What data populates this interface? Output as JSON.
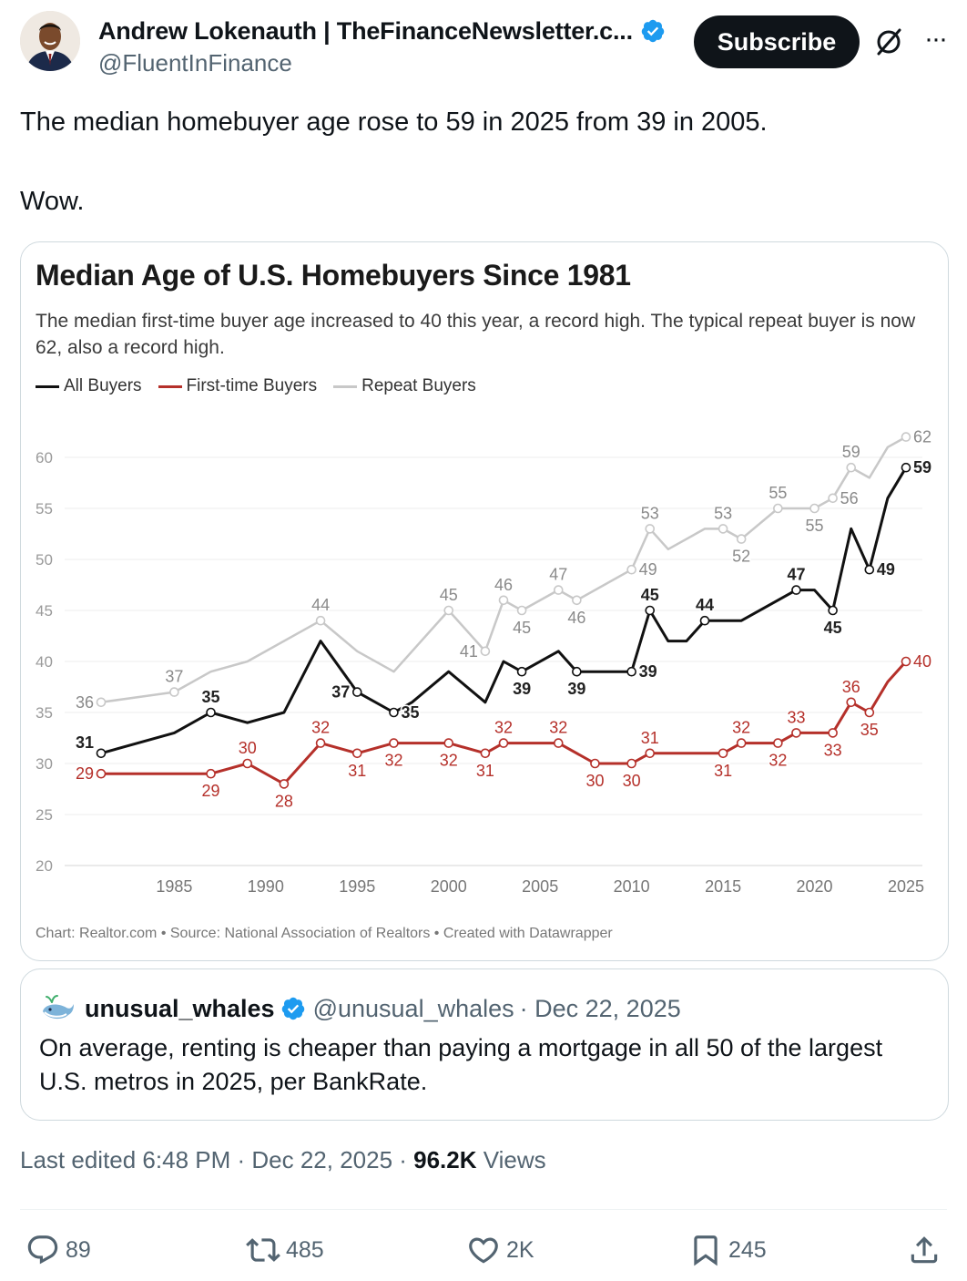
{
  "author": {
    "name": "Andrew Lokenauth | TheFinanceNewsletter.c...",
    "handle": "@FluentInFinance",
    "verified_color": "#1d9bf0"
  },
  "header": {
    "subscribe_label": "Subscribe",
    "grok_icon": "slashed-circle-icon",
    "more_label": "···"
  },
  "tweet": {
    "line1": "The median homebuyer age rose to 59 in 2025 from 39 in 2005.",
    "line2": "Wow."
  },
  "chart_data": {
    "type": "line",
    "title": "Median Age of U.S. Homebuyers Since 1981",
    "subtitle": "The median first-time buyer age increased to 40 this year, a record high. The typical repeat buyer is now 62, also a record high.",
    "source": "Chart: Realtor.com • Source: National Association of Realtors • Created with Datawrapper",
    "xlabel": "",
    "ylabel": "",
    "xlim": [
      1981,
      2025
    ],
    "ylim": [
      20,
      60
    ],
    "y_ticks": [
      20,
      25,
      30,
      35,
      40,
      45,
      50,
      55,
      60
    ],
    "x_ticks": [
      1985,
      1990,
      1995,
      2000,
      2005,
      2010,
      2015,
      2020,
      2025
    ],
    "grid": true,
    "legend": "top-left",
    "series": [
      {
        "name": "Repeat Buyers",
        "color": "#c8c8c8",
        "label_color": "#8a8a8a",
        "points": [
          [
            1981,
            36
          ],
          [
            1985,
            37
          ],
          [
            1987,
            39
          ],
          [
            1989,
            40
          ],
          [
            1993,
            44
          ],
          [
            1995,
            41
          ],
          [
            1997,
            39
          ],
          [
            2000,
            45
          ],
          [
            2002,
            41
          ],
          [
            2003,
            46
          ],
          [
            2004,
            45
          ],
          [
            2006,
            47
          ],
          [
            2007,
            46
          ],
          [
            2010,
            49
          ],
          [
            2011,
            53
          ],
          [
            2012,
            51
          ],
          [
            2014,
            53
          ],
          [
            2015,
            53
          ],
          [
            2016,
            52
          ],
          [
            2018,
            55
          ],
          [
            2019,
            55
          ],
          [
            2020,
            55
          ],
          [
            2021,
            56
          ],
          [
            2022,
            59
          ],
          [
            2023,
            58
          ],
          [
            2024,
            61
          ],
          [
            2025,
            62
          ]
        ],
        "labels": [
          {
            "x": 1981,
            "y": 36,
            "text": "36",
            "pos": "left"
          },
          {
            "x": 1985,
            "y": 37,
            "text": "37",
            "pos": "above"
          },
          {
            "x": 1993,
            "y": 44,
            "text": "44",
            "pos": "above"
          },
          {
            "x": 2000,
            "y": 45,
            "text": "45",
            "pos": "above"
          },
          {
            "x": 2002,
            "y": 41,
            "text": "41",
            "pos": "left"
          },
          {
            "x": 2003,
            "y": 46,
            "text": "46",
            "pos": "above"
          },
          {
            "x": 2004,
            "y": 45,
            "text": "45",
            "pos": "below"
          },
          {
            "x": 2006,
            "y": 47,
            "text": "47",
            "pos": "above"
          },
          {
            "x": 2007,
            "y": 46,
            "text": "46",
            "pos": "below"
          },
          {
            "x": 2010,
            "y": 49,
            "text": "49",
            "pos": "right"
          },
          {
            "x": 2011,
            "y": 53,
            "text": "53",
            "pos": "above"
          },
          {
            "x": 2015,
            "y": 53,
            "text": "53",
            "pos": "above"
          },
          {
            "x": 2016,
            "y": 52,
            "text": "52",
            "pos": "below"
          },
          {
            "x": 2018,
            "y": 55,
            "text": "55",
            "pos": "above"
          },
          {
            "x": 2020,
            "y": 55,
            "text": "55",
            "pos": "below"
          },
          {
            "x": 2021,
            "y": 56,
            "text": "56",
            "pos": "right"
          },
          {
            "x": 2022,
            "y": 59,
            "text": "59",
            "pos": "above"
          },
          {
            "x": 2025,
            "y": 62,
            "text": "62",
            "pos": "right"
          }
        ]
      },
      {
        "name": "All Buyers",
        "color": "#111111",
        "label_color": "#222222",
        "points": [
          [
            1981,
            31
          ],
          [
            1985,
            33
          ],
          [
            1987,
            35
          ],
          [
            1989,
            34
          ],
          [
            1991,
            35
          ],
          [
            1993,
            42
          ],
          [
            1995,
            37
          ],
          [
            1997,
            35
          ],
          [
            1998,
            36
          ],
          [
            2000,
            39
          ],
          [
            2002,
            36
          ],
          [
            2003,
            40
          ],
          [
            2004,
            39
          ],
          [
            2006,
            41
          ],
          [
            2007,
            39
          ],
          [
            2010,
            39
          ],
          [
            2011,
            45
          ],
          [
            2012,
            42
          ],
          [
            2013,
            42
          ],
          [
            2014,
            44
          ],
          [
            2016,
            44
          ],
          [
            2019,
            47
          ],
          [
            2020,
            47
          ],
          [
            2021,
            45
          ],
          [
            2022,
            53
          ],
          [
            2023,
            49
          ],
          [
            2024,
            56
          ],
          [
            2025,
            59
          ]
        ],
        "labels": [
          {
            "x": 1981,
            "y": 31,
            "text": "31",
            "pos": "left-above"
          },
          {
            "x": 1987,
            "y": 35,
            "text": "35",
            "pos": "above"
          },
          {
            "x": 1995,
            "y": 37,
            "text": "37",
            "pos": "left"
          },
          {
            "x": 1997,
            "y": 35,
            "text": "35",
            "pos": "right"
          },
          {
            "x": 2004,
            "y": 39,
            "text": "39",
            "pos": "below"
          },
          {
            "x": 2007,
            "y": 39,
            "text": "39",
            "pos": "below"
          },
          {
            "x": 2010,
            "y": 39,
            "text": "39",
            "pos": "right"
          },
          {
            "x": 2011,
            "y": 45,
            "text": "45",
            "pos": "above"
          },
          {
            "x": 2014,
            "y": 44,
            "text": "44",
            "pos": "above"
          },
          {
            "x": 2019,
            "y": 47,
            "text": "47",
            "pos": "above"
          },
          {
            "x": 2021,
            "y": 45,
            "text": "45",
            "pos": "below"
          },
          {
            "x": 2023,
            "y": 49,
            "text": "49",
            "pos": "right"
          },
          {
            "x": 2025,
            "y": 59,
            "text": "59",
            "pos": "right"
          }
        ]
      },
      {
        "name": "First-time Buyers",
        "color": "#b5302a",
        "label_color": "#b5302a",
        "points": [
          [
            1981,
            29
          ],
          [
            1985,
            29
          ],
          [
            1987,
            29
          ],
          [
            1989,
            30
          ],
          [
            1991,
            28
          ],
          [
            1993,
            32
          ],
          [
            1995,
            31
          ],
          [
            1997,
            32
          ],
          [
            2000,
            32
          ],
          [
            2002,
            31
          ],
          [
            2003,
            32
          ],
          [
            2004,
            32
          ],
          [
            2006,
            32
          ],
          [
            2008,
            30
          ],
          [
            2010,
            30
          ],
          [
            2011,
            31
          ],
          [
            2014,
            31
          ],
          [
            2015,
            31
          ],
          [
            2016,
            32
          ],
          [
            2018,
            32
          ],
          [
            2019,
            33
          ],
          [
            2021,
            33
          ],
          [
            2022,
            36
          ],
          [
            2023,
            35
          ],
          [
            2024,
            38
          ],
          [
            2025,
            40
          ]
        ],
        "labels": [
          {
            "x": 1981,
            "y": 29,
            "text": "29",
            "pos": "left"
          },
          {
            "x": 1987,
            "y": 29,
            "text": "29",
            "pos": "below"
          },
          {
            "x": 1989,
            "y": 30,
            "text": "30",
            "pos": "above"
          },
          {
            "x": 1991,
            "y": 28,
            "text": "28",
            "pos": "below"
          },
          {
            "x": 1993,
            "y": 32,
            "text": "32",
            "pos": "above"
          },
          {
            "x": 1995,
            "y": 31,
            "text": "31",
            "pos": "below"
          },
          {
            "x": 1997,
            "y": 32,
            "text": "32",
            "pos": "below"
          },
          {
            "x": 2000,
            "y": 32,
            "text": "32",
            "pos": "below"
          },
          {
            "x": 2002,
            "y": 31,
            "text": "31",
            "pos": "below"
          },
          {
            "x": 2003,
            "y": 32,
            "text": "32",
            "pos": "above"
          },
          {
            "x": 2006,
            "y": 32,
            "text": "32",
            "pos": "above"
          },
          {
            "x": 2008,
            "y": 30,
            "text": "30",
            "pos": "below"
          },
          {
            "x": 2010,
            "y": 30,
            "text": "30",
            "pos": "below"
          },
          {
            "x": 2011,
            "y": 31,
            "text": "31",
            "pos": "above"
          },
          {
            "x": 2015,
            "y": 31,
            "text": "31",
            "pos": "below"
          },
          {
            "x": 2016,
            "y": 32,
            "text": "32",
            "pos": "above"
          },
          {
            "x": 2018,
            "y": 32,
            "text": "32",
            "pos": "below"
          },
          {
            "x": 2019,
            "y": 33,
            "text": "33",
            "pos": "above"
          },
          {
            "x": 2021,
            "y": 33,
            "text": "33",
            "pos": "below"
          },
          {
            "x": 2022,
            "y": 36,
            "text": "36",
            "pos": "above"
          },
          {
            "x": 2023,
            "y": 35,
            "text": "35",
            "pos": "below"
          },
          {
            "x": 2025,
            "y": 40,
            "text": "40",
            "pos": "right"
          }
        ]
      }
    ]
  },
  "quote": {
    "name": "unusual_whales",
    "handle": "@unusual_whales",
    "date": "· Dec 22, 2025",
    "text": "On average, renting is cheaper than paying a mortgage in all 50 of the largest U.S. metros in 2025, per BankRate."
  },
  "meta": {
    "edited": "Last edited 6:48 PM · Dec 22, 2025 · ",
    "views_count": "96.2K",
    "views_label": " Views"
  },
  "actions": {
    "replies": "89",
    "reposts": "485",
    "likes": "2K",
    "bookmarks": "245"
  }
}
